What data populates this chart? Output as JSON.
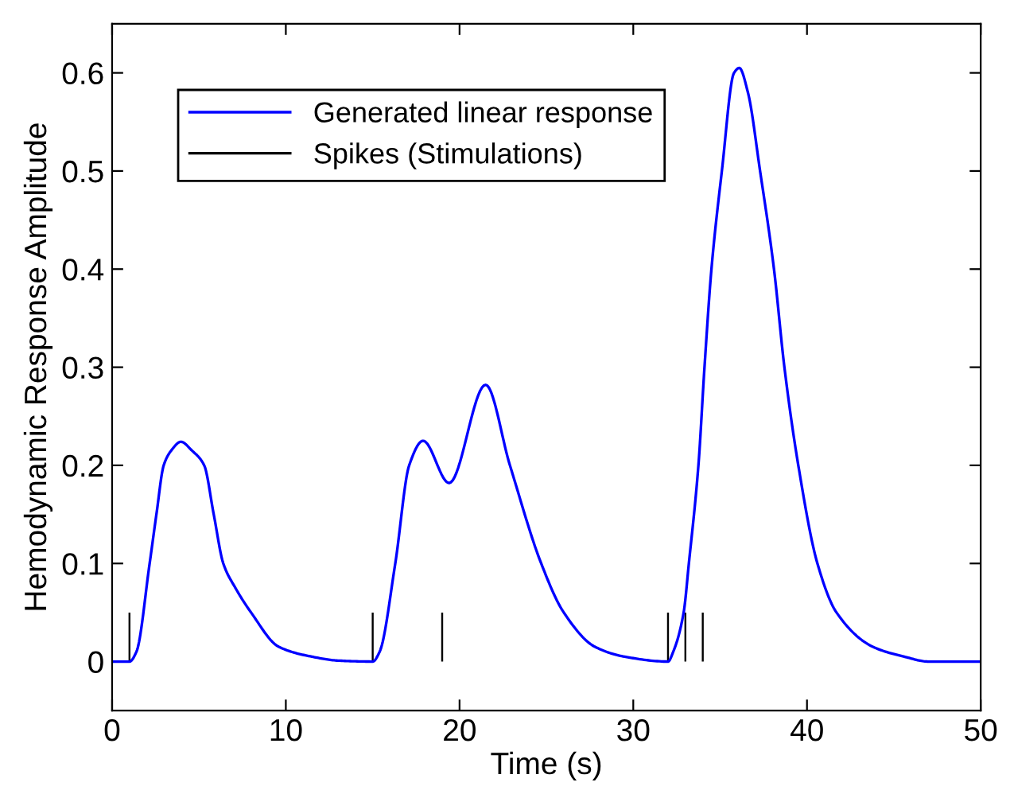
{
  "chart_data": {
    "type": "line",
    "xlabel": "Time (s)",
    "ylabel": "Hemodynamic Response Amplitude",
    "xlim": [
      0,
      50
    ],
    "ylim": [
      -0.05,
      0.65
    ],
    "xticks": [
      0,
      10,
      20,
      30,
      40,
      50
    ],
    "yticks": [
      0,
      0.1,
      0.2,
      0.3,
      0.4,
      0.5,
      0.6
    ],
    "grid": false,
    "legend": "top left",
    "marker": "none",
    "line_style": "solid",
    "series": [
      {
        "name": "Generated linear response",
        "color": "#0000ff",
        "x": [
          0,
          1,
          1.4,
          2.16,
          2.55,
          2.97,
          3.4,
          3.96,
          4.6,
          5.3,
          5.85,
          6.4,
          7.1,
          8.0,
          9.6,
          11.5,
          13,
          15,
          15.4,
          16.3,
          17.1,
          17.9,
          19.4,
          21.5,
          22.9,
          24.7,
          26.0,
          27.8,
          29.5,
          32,
          32.3,
          32.9,
          33.2,
          33.75,
          34.1,
          34.5,
          35.1,
          35.8,
          36.1,
          36.6,
          37.3,
          38.1,
          38.7,
          39.5,
          40.6,
          41.7,
          43.8,
          45.6,
          47,
          50
        ],
        "values": [
          0,
          0,
          0.01,
          0.1,
          0.15,
          0.2,
          0.215,
          0.224,
          0.215,
          0.2,
          0.15,
          0.1,
          0.075,
          0.05,
          0.015,
          0.005,
          0.001,
          0,
          0.01,
          0.1,
          0.2,
          0.225,
          0.182,
          0.282,
          0.2,
          0.1,
          0.05,
          0.015,
          0.005,
          0,
          0.01,
          0.05,
          0.1,
          0.2,
          0.3,
          0.4,
          0.5,
          0.6,
          0.605,
          0.58,
          0.5,
          0.4,
          0.3,
          0.2,
          0.1,
          0.05,
          0.015,
          0.005,
          0,
          0
        ]
      },
      {
        "name": "Spikes (Stimulations)",
        "type": "bar",
        "color": "#000000",
        "x": [
          1,
          15,
          19,
          32,
          33,
          34
        ],
        "values": [
          0.05,
          0.05,
          0.05,
          0.05,
          0.05,
          0.05
        ]
      }
    ]
  }
}
